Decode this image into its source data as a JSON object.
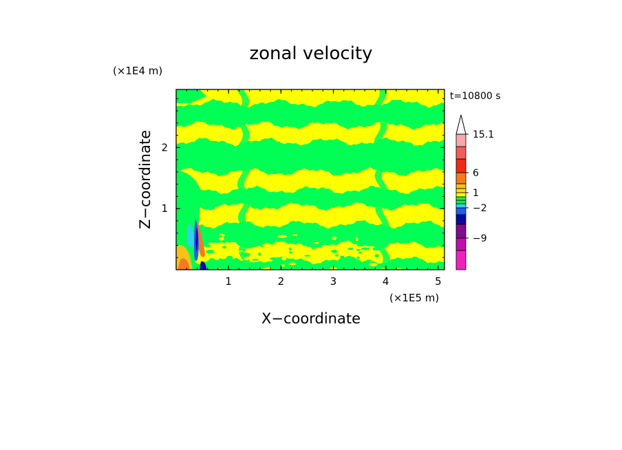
{
  "chart_data": {
    "type": "heatmap",
    "title": "zonal velocity",
    "xlabel": "X−coordinate",
    "ylabel": "Z−coordinate",
    "x_scale_label": "(×1E5 m)",
    "y_scale_label": "(×1E4 m)",
    "time_label": "t=10800 s",
    "xlim": [
      0,
      5.12
    ],
    "ylim": [
      0,
      2.95
    ],
    "x_ticks": [
      1,
      2,
      3,
      4,
      5
    ],
    "y_ticks": [
      1,
      2
    ],
    "colorbar": {
      "tick_labels": [
        {
          "label": "15.1",
          "value": 15.1
        },
        {
          "label": "6",
          "value": 6
        },
        {
          "label": "1",
          "value": 1
        },
        {
          "label": "−2",
          "value": -2
        },
        {
          "label": "−9",
          "value": -9
        }
      ],
      "levels": [
        {
          "value": -15,
          "color": "#ee22bb"
        },
        {
          "value": -12,
          "color": "#bb10aa"
        },
        {
          "value": -9,
          "color": "#7f0c8c"
        },
        {
          "value": -6,
          "color": "#0a0a9a"
        },
        {
          "value": -4,
          "color": "#1f5ff2"
        },
        {
          "value": -2,
          "color": "#33d1ea"
        },
        {
          "value": -1,
          "color": "#1ee84a"
        },
        {
          "value": 0,
          "color": "#00ff55"
        },
        {
          "value": 0.5,
          "color": "#ffff00"
        },
        {
          "value": 1,
          "color": "#f2e214"
        },
        {
          "value": 2,
          "color": "#f5c21b"
        },
        {
          "value": 4,
          "color": "#f47b1e"
        },
        {
          "value": 6,
          "color": "#ee2a19"
        },
        {
          "value": 9,
          "color": "#f05d5d"
        },
        {
          "value": 12,
          "color": "#f7a8a8"
        },
        {
          "value": 15.1,
          "color": "#f7c8c8"
        }
      ]
    },
    "colors": {
      "positive": "#ffff00",
      "negative": "#00ff55",
      "frame": "#000000"
    }
  }
}
